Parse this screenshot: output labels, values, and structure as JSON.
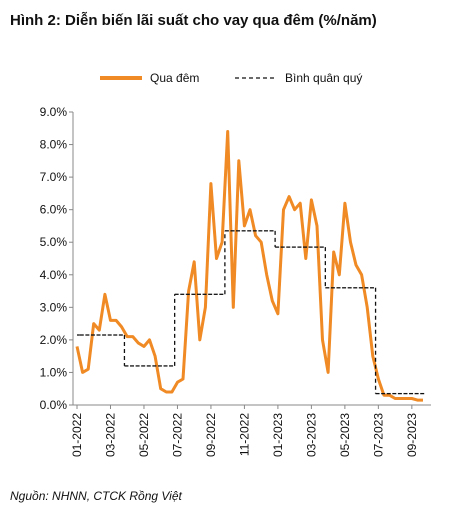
{
  "chart_data": {
    "type": "line",
    "title": "Hình 2: Diễn biến lãi suất cho vay qua đêm (%/năm)",
    "source": "Nguồn: NHNN, CTCK Rồng Việt",
    "categories": [
      "01-2022",
      null,
      null,
      null,
      null,
      null,
      "03-2022",
      null,
      null,
      null,
      null,
      null,
      "05-2022",
      null,
      null,
      null,
      null,
      null,
      "07-2022",
      null,
      null,
      null,
      null,
      null,
      "09-2022",
      null,
      null,
      null,
      null,
      null,
      "11-2022",
      null,
      null,
      null,
      null,
      null,
      "01-2023",
      null,
      null,
      null,
      null,
      null,
      "03-2023",
      null,
      null,
      null,
      null,
      null,
      "05-2023",
      null,
      null,
      null,
      null,
      null,
      "07-2023",
      null,
      null,
      null,
      null,
      null,
      "09-2023",
      null,
      null
    ],
    "series": [
      {
        "name": "Qua đêm",
        "color": "#f08a24",
        "style": "solid",
        "values": [
          1.8,
          1.0,
          1.1,
          2.5,
          2.3,
          3.4,
          2.6,
          2.6,
          2.4,
          2.1,
          2.1,
          1.9,
          1.8,
          2.0,
          1.5,
          0.5,
          0.4,
          0.4,
          0.7,
          0.8,
          3.5,
          4.4,
          2.0,
          3.0,
          6.8,
          4.5,
          5.0,
          8.4,
          3.0,
          7.5,
          5.5,
          6.0,
          5.2,
          5.0,
          4.0,
          3.2,
          2.8,
          6.0,
          6.4,
          6.0,
          6.2,
          4.5,
          6.3,
          5.5,
          2.0,
          1.0,
          4.7,
          4.0,
          6.2,
          5.0,
          4.3,
          4.0,
          3.0,
          1.5,
          0.8,
          0.3,
          0.3,
          0.2,
          0.2,
          0.2,
          0.2,
          0.15,
          0.15
        ]
      },
      {
        "name": "Bình quân quý",
        "color": "#111111",
        "style": "dashed-step",
        "values": [
          2.15,
          2.15,
          2.15,
          2.15,
          2.15,
          2.15,
          2.15,
          2.15,
          2.15,
          1.2,
          1.2,
          1.2,
          1.2,
          1.2,
          1.2,
          1.2,
          1.2,
          1.2,
          3.4,
          3.4,
          3.4,
          3.4,
          3.4,
          3.4,
          3.4,
          3.4,
          3.4,
          5.35,
          5.35,
          5.35,
          5.35,
          5.35,
          5.35,
          5.35,
          5.35,
          5.35,
          4.85,
          4.85,
          4.85,
          4.85,
          4.85,
          4.85,
          4.85,
          4.85,
          4.85,
          3.6,
          3.6,
          3.6,
          3.6,
          3.6,
          3.6,
          3.6,
          3.6,
          3.6,
          0.35,
          0.35,
          0.35,
          0.35,
          0.35,
          0.35,
          0.35,
          0.35,
          0.35
        ]
      }
    ],
    "ylim": [
      0,
      9
    ],
    "yticks": [
      {
        "value": 0,
        "label": "0.0%"
      },
      {
        "value": 1,
        "label": "1.0%"
      },
      {
        "value": 2,
        "label": "2.0%"
      },
      {
        "value": 3,
        "label": "3.0%"
      },
      {
        "value": 4,
        "label": "4.0%"
      },
      {
        "value": 5,
        "label": "5.0%"
      },
      {
        "value": 6,
        "label": "6.0%"
      },
      {
        "value": 7,
        "label": "7.0%"
      },
      {
        "value": 8,
        "label": "8.0%"
      },
      {
        "value": 9,
        "label": "9.0%"
      }
    ],
    "grid": false,
    "legend": "top"
  }
}
